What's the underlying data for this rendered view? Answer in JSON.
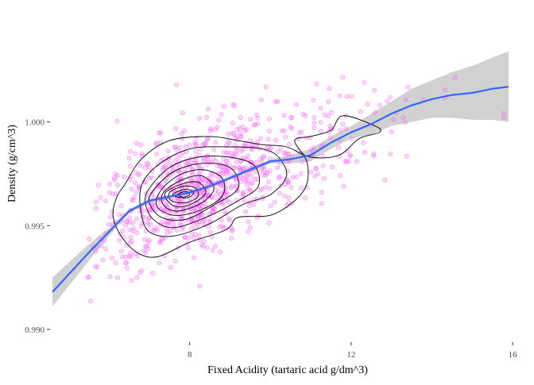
{
  "chart_data": {
    "type": "scatter",
    "title": "",
    "xlabel": "Fixed Acidity (tartaric acid g/dm^3)",
    "ylabel": "Density (g/cm^3)",
    "xlim": [
      4.6,
      15.9
    ],
    "ylim": [
      0.9895,
      1.0045
    ],
    "x_ticks": [
      8,
      12,
      16
    ],
    "x_tick_labels": [
      "8",
      "12",
      "16"
    ],
    "y_ticks": [
      0.99,
      0.995,
      1.0
    ],
    "y_tick_labels": [
      "0.990",
      "0.995",
      "1.000"
    ],
    "grid": false,
    "legend": "none",
    "colors": {
      "points_fill": "#ff66ff",
      "points_stroke": "#ee55ee",
      "smooth_line": "#3366ff",
      "ribbon": "#bdbdbd",
      "contour": "#000000"
    },
    "point_alpha": 0.25,
    "smooth": {
      "method": "loess",
      "x": [
        4.6,
        5.5,
        6.0,
        6.5,
        7.0,
        7.5,
        8.0,
        8.5,
        9.0,
        9.5,
        10.0,
        10.5,
        11.0,
        11.5,
        12.0,
        12.5,
        13.0,
        13.5,
        14.0,
        14.5,
        15.0,
        15.5,
        15.9
      ],
      "y": [
        0.9918,
        0.9937,
        0.9947,
        0.9957,
        0.9962,
        0.9964,
        0.9966,
        0.9969,
        0.9973,
        0.9977,
        0.9981,
        0.9982,
        0.9984,
        0.999,
        0.9995,
        0.9999,
        1.0004,
        1.0008,
        1.0011,
        1.0013,
        1.0014,
        1.0016,
        1.0017
      ],
      "upper": [
        0.9925,
        0.9941,
        0.9949,
        0.9958,
        0.9963,
        0.9965,
        0.9967,
        0.997,
        0.9974,
        0.9978,
        0.9982,
        0.9984,
        0.9987,
        0.9993,
        0.9998,
        1.0004,
        1.001,
        1.0016,
        1.002,
        1.0024,
        1.0027,
        1.0031,
        1.0034
      ],
      "lower": [
        0.9911,
        0.9933,
        0.9945,
        0.9956,
        0.9961,
        0.9963,
        0.9965,
        0.9968,
        0.9972,
        0.9976,
        0.998,
        0.998,
        0.9981,
        0.9987,
        0.9992,
        0.9994,
        0.9998,
        1.0,
        1.0002,
        1.0002,
        1.0001,
        1.0001,
        1.0
      ]
    },
    "contours": [
      [
        [
          6.4,
          0.997
        ],
        [
          6.8,
          0.9982
        ],
        [
          7.5,
          0.9991
        ],
        [
          8.5,
          0.9993
        ],
        [
          9.2,
          0.9991
        ],
        [
          9.8,
          0.9989
        ],
        [
          10.4,
          0.9988
        ],
        [
          11.0,
          0.9983
        ],
        [
          11.7,
          0.9984
        ],
        [
          12.2,
          0.9992
        ],
        [
          12.7,
          0.9995
        ],
        [
          12.6,
          0.9998
        ],
        [
          11.8,
          1.0003
        ],
        [
          11.5,
          0.9996
        ],
        [
          11.0,
          0.9993
        ],
        [
          10.6,
          0.9991
        ],
        [
          10.9,
          0.9981
        ],
        [
          10.9,
          0.997
        ],
        [
          10.6,
          0.9962
        ],
        [
          10.0,
          0.9955
        ],
        [
          9.2,
          0.9954
        ],
        [
          8.9,
          0.9948
        ],
        [
          8.0,
          0.9942
        ],
        [
          7.2,
          0.9935
        ],
        [
          6.7,
          0.9937
        ],
        [
          6.3,
          0.9945
        ],
        [
          6.1,
          0.9955
        ],
        [
          6.2,
          0.9964
        ]
      ],
      [
        [
          6.8,
          0.9969
        ],
        [
          7.2,
          0.9979
        ],
        [
          8.0,
          0.9987
        ],
        [
          9.0,
          0.9988
        ],
        [
          9.8,
          0.9987
        ],
        [
          10.2,
          0.9983
        ],
        [
          10.4,
          0.9974
        ],
        [
          10.0,
          0.9965
        ],
        [
          9.3,
          0.996
        ],
        [
          8.5,
          0.9951
        ],
        [
          7.6,
          0.9945
        ],
        [
          7.0,
          0.9947
        ],
        [
          6.8,
          0.9956
        ]
      ],
      [
        [
          7.0,
          0.9968
        ],
        [
          7.5,
          0.9978
        ],
        [
          8.2,
          0.9983
        ],
        [
          9.0,
          0.9983
        ],
        [
          9.6,
          0.9979
        ],
        [
          9.7,
          0.9969
        ],
        [
          9.2,
          0.9962
        ],
        [
          8.4,
          0.9954
        ],
        [
          7.6,
          0.9949
        ],
        [
          7.1,
          0.9953
        ],
        [
          6.9,
          0.9961
        ]
      ],
      [
        [
          7.1,
          0.9967
        ],
        [
          7.6,
          0.9976
        ],
        [
          8.3,
          0.998
        ],
        [
          9.0,
          0.9978
        ],
        [
          9.2,
          0.9968
        ],
        [
          8.6,
          0.996
        ],
        [
          7.9,
          0.9953
        ],
        [
          7.3,
          0.9954
        ],
        [
          7.0,
          0.9961
        ]
      ],
      [
        [
          7.25,
          0.9966
        ],
        [
          7.7,
          0.9974
        ],
        [
          8.3,
          0.9977
        ],
        [
          8.8,
          0.9973
        ],
        [
          8.8,
          0.9964
        ],
        [
          8.2,
          0.9957
        ],
        [
          7.6,
          0.9955
        ],
        [
          7.2,
          0.9959
        ]
      ],
      [
        [
          7.35,
          0.9966
        ],
        [
          7.8,
          0.9972
        ],
        [
          8.3,
          0.9974
        ],
        [
          8.6,
          0.9968
        ],
        [
          8.3,
          0.9961
        ],
        [
          7.7,
          0.9957
        ],
        [
          7.35,
          0.996
        ]
      ],
      [
        [
          7.4,
          0.9966
        ],
        [
          7.8,
          0.997
        ],
        [
          8.2,
          0.9971
        ],
        [
          8.4,
          0.9966
        ],
        [
          8.1,
          0.9961
        ],
        [
          7.7,
          0.9959
        ],
        [
          7.45,
          0.9962
        ]
      ],
      [
        [
          7.5,
          0.9966
        ],
        [
          7.85,
          0.9969
        ],
        [
          8.15,
          0.9968
        ],
        [
          8.2,
          0.9964
        ],
        [
          7.9,
          0.9961
        ],
        [
          7.55,
          0.9962
        ]
      ],
      [
        [
          7.6,
          0.99655
        ],
        [
          7.9,
          0.99675
        ],
        [
          8.1,
          0.9966
        ],
        [
          7.95,
          0.99635
        ],
        [
          7.65,
          0.9964
        ]
      ],
      [
        [
          7.7,
          0.9965
        ],
        [
          7.9,
          0.99665
        ],
        [
          8.0,
          0.9965
        ],
        [
          7.85,
          0.99638
        ]
      ]
    ],
    "points_note_count": 900
  }
}
